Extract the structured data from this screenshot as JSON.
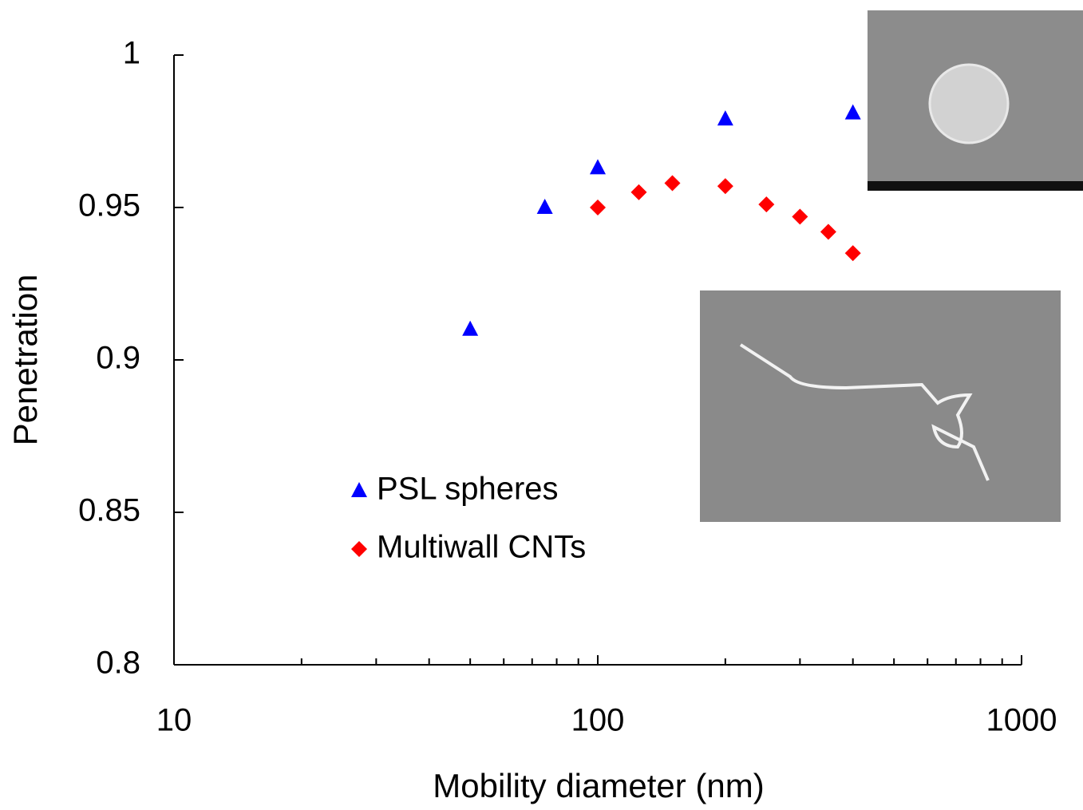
{
  "chart_data": {
    "type": "scatter",
    "x_label": "Mobility diameter (nm)",
    "y_label": "Penetration",
    "x_log": true,
    "xlim": [
      10,
      1000
    ],
    "xticks": [
      10,
      100,
      1000
    ],
    "xminor_ticks": [
      20,
      30,
      40,
      50,
      60,
      70,
      80,
      90,
      200,
      300,
      400,
      500,
      600,
      700,
      800,
      900
    ],
    "ylim": [
      0.8,
      1
    ],
    "yticks": [
      0.8,
      0.85,
      0.9,
      0.95,
      1
    ],
    "series": [
      {
        "name": "PSL spheres",
        "color": "#0000ff",
        "marker": "triangle",
        "x": [
          50,
          75,
          100,
          200,
          400
        ],
        "values": [
          0.91,
          0.95,
          0.963,
          0.979,
          0.981
        ]
      },
      {
        "name": "Multiwall CNTs",
        "color": "#ff0000",
        "marker": "diamond",
        "x": [
          100,
          125,
          150,
          200,
          250,
          300,
          350,
          400
        ],
        "values": [
          0.95,
          0.955,
          0.958,
          0.957,
          0.951,
          0.947,
          0.942,
          0.935
        ]
      }
    ]
  }
}
